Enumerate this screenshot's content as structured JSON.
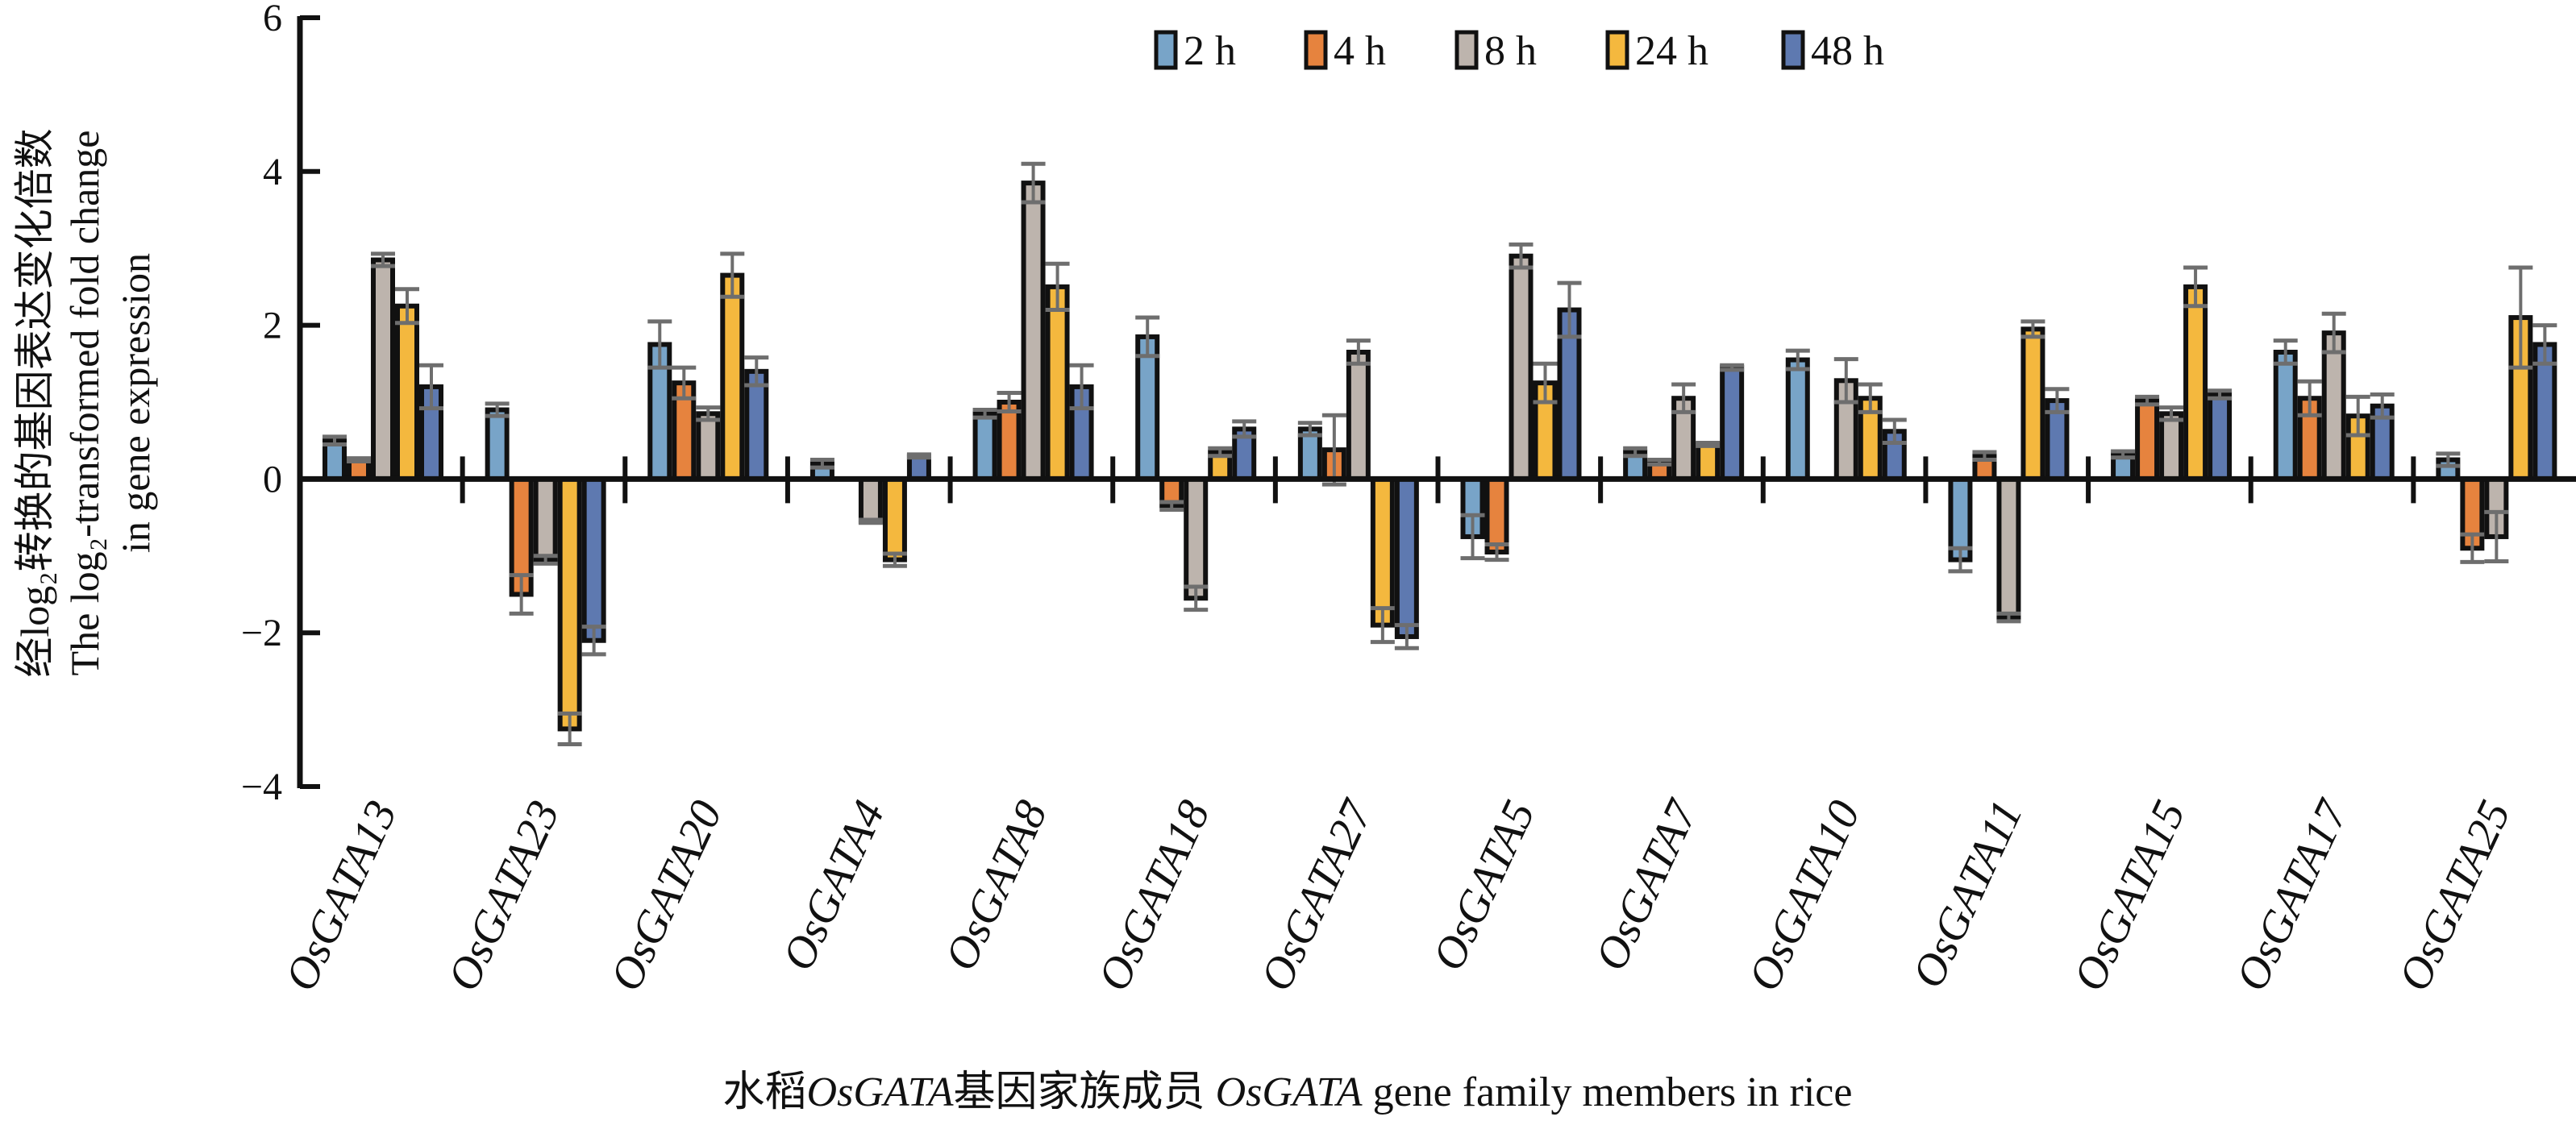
{
  "chart_data": {
    "type": "bar",
    "title": "",
    "xlabel_cn": "水稻",
    "xlabel_italic1": "OsGATA",
    "xlabel_cn2": "基因家族成员 ",
    "xlabel_italic2": "OsGATA",
    "xlabel_en": " gene family members in rice",
    "ylabel_line1": "经log₂转换的基因表达变化倍数",
    "ylabel_line2": "The log₂-transformed fold change",
    "ylabel_line3": "in gene expression",
    "ylim": [
      -4,
      6
    ],
    "yticks": [
      -4,
      -2,
      0,
      2,
      4,
      6
    ],
    "ytick_labels": [
      "−4",
      "−2",
      "0",
      "2",
      "4",
      "6"
    ],
    "legend_position": "top-right",
    "categories": [
      "OsGATA13",
      "OsGATA23",
      "OsGATA20",
      "OsGATA4",
      "OsGATA8",
      "OsGATA18",
      "OsGATA27",
      "OsGATA5",
      "OsGATA7",
      "OsGATA10",
      "OsGATA11",
      "OsGATA15",
      "OsGATA17",
      "OsGATA25"
    ],
    "series": [
      {
        "name": "2 h",
        "color": "#78a4c8",
        "values": [
          0.5,
          0.9,
          1.75,
          0.2,
          0.85,
          1.85,
          0.65,
          -0.75,
          0.35,
          1.55,
          -1.05,
          0.32,
          1.65,
          0.25
        ],
        "errors": [
          0.05,
          0.08,
          0.3,
          0.05,
          0.05,
          0.25,
          0.08,
          0.28,
          0.05,
          0.12,
          0.15,
          0.04,
          0.15,
          0.08
        ]
      },
      {
        "name": "4 h",
        "color": "#e6833e",
        "values": [
          0.25,
          -1.5,
          1.25,
          0.0,
          1.0,
          -0.35,
          0.38,
          -0.95,
          0.22,
          0.0,
          0.3,
          1.02,
          1.05,
          -0.9
        ],
        "errors": [
          0.02,
          0.25,
          0.2,
          0.0,
          0.12,
          0.05,
          0.45,
          0.1,
          0.03,
          0.0,
          0.05,
          0.05,
          0.22,
          0.18
        ]
      },
      {
        "name": "8 h",
        "color": "#bdb4ad",
        "values": [
          2.85,
          -1.05,
          0.85,
          -0.55,
          3.85,
          -1.55,
          1.65,
          2.9,
          1.05,
          1.28,
          -1.8,
          0.85,
          1.9,
          -0.75
        ],
        "errors": [
          0.08,
          0.05,
          0.08,
          0.02,
          0.25,
          0.15,
          0.15,
          0.15,
          0.18,
          0.28,
          0.05,
          0.08,
          0.25,
          0.32
        ]
      },
      {
        "name": "24 h",
        "color": "#f4b83e",
        "values": [
          2.25,
          -3.25,
          2.65,
          -1.05,
          2.5,
          0.35,
          -1.9,
          1.25,
          0.45,
          1.05,
          1.95,
          2.5,
          0.82,
          2.1
        ],
        "errors": [
          0.22,
          0.2,
          0.28,
          0.08,
          0.3,
          0.05,
          0.22,
          0.25,
          0.02,
          0.18,
          0.1,
          0.25,
          0.25,
          0.65
        ]
      },
      {
        "name": "48 h",
        "color": "#5e79b0",
        "values": [
          1.2,
          -2.1,
          1.4,
          0.3,
          1.2,
          0.65,
          -2.05,
          2.2,
          1.45,
          0.62,
          1.02,
          1.1,
          0.95,
          1.75
        ],
        "errors": [
          0.28,
          0.18,
          0.18,
          0.02,
          0.28,
          0.1,
          0.15,
          0.35,
          0.03,
          0.15,
          0.15,
          0.05,
          0.15,
          0.25
        ]
      }
    ]
  },
  "colors": {
    "axis": "#111111",
    "bar_outline": "#111111",
    "error_bar": "#6e6e6e"
  }
}
